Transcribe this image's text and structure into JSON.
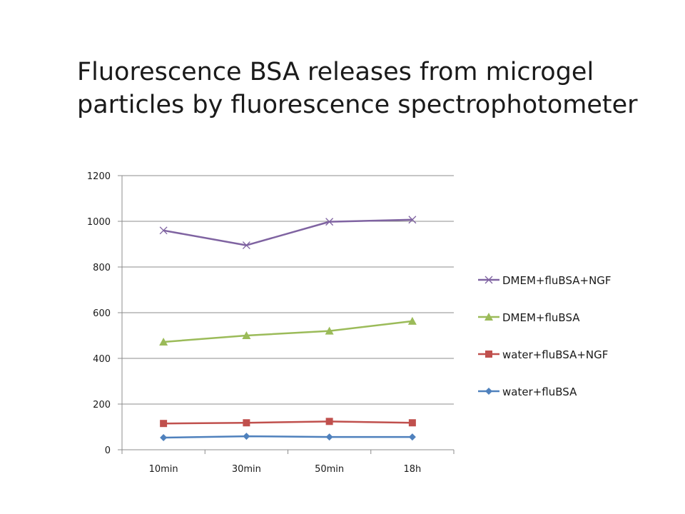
{
  "title_lines": [
    "Fluorescence BSA releases from microgel",
    "particles by fluorescence spectrophotometer"
  ],
  "chart_data": {
    "type": "line",
    "title": "Fluorescence BSA releases from microgel particles by fluorescence spectrophotometer",
    "categories": [
      "10min",
      "30min",
      "50min",
      "18h"
    ],
    "ylim": [
      0,
      1200
    ],
    "yticks": [
      0,
      200,
      400,
      600,
      800,
      1000,
      1200
    ],
    "grid": "horizontal",
    "legend_position": "right",
    "series": [
      {
        "name": "DMEM+fluBSA+NGF",
        "values": [
          960,
          895,
          998,
          1007
        ],
        "color": "#7f63a1",
        "marker": "x"
      },
      {
        "name": "DMEM+fluBSA",
        "values": [
          472,
          500,
          520,
          563
        ],
        "color": "#9bbb59",
        "marker": "triangle"
      },
      {
        "name": "water+fluBSA+NGF",
        "values": [
          115,
          118,
          124,
          118
        ],
        "color": "#c0504d",
        "marker": "square"
      },
      {
        "name": "water+fluBSA",
        "values": [
          53,
          59,
          56,
          56
        ],
        "color": "#4f81bd",
        "marker": "diamond"
      }
    ]
  }
}
